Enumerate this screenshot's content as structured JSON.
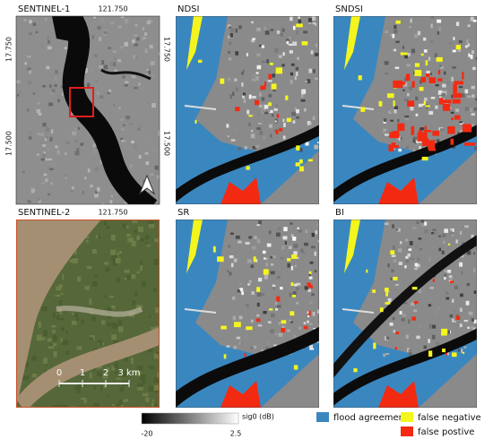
{
  "panels": [
    {
      "title": "SENTINEL-1"
    },
    {
      "title": "NDSI"
    },
    {
      "title": "SNDSI"
    },
    {
      "title": "SENTINEL-2"
    },
    {
      "title": "SR"
    },
    {
      "title": "BI"
    }
  ],
  "coordinates": {
    "lon_top": "121.750",
    "lon_bottom": "121.750",
    "lat_left": [
      "17.750",
      "17.500"
    ],
    "lat_right": [
      "17.750",
      "17.500"
    ]
  },
  "scale_bar": [
    "0",
    "1",
    "2",
    "3 km"
  ],
  "colorbar": {
    "label": "sig0 (dB)",
    "min": -20,
    "max": 2.5
  },
  "legend": [
    "flood agreement",
    "false negative",
    "false postive"
  ]
}
